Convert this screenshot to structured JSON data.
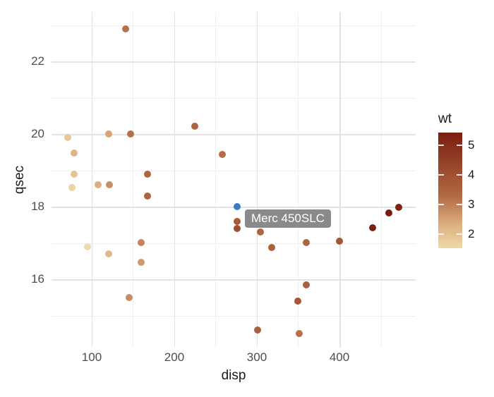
{
  "figure": {
    "background": "#ffffff"
  },
  "tooltip": {
    "text": "Merc 450SLC",
    "bg": "#8a8a8a",
    "text_color": "#ffffff"
  },
  "chart_data": {
    "type": "scatter",
    "title": "",
    "xlabel": "disp",
    "ylabel": "qsec",
    "xlim": [
      51.3,
      492.3
    ],
    "ylim": [
      14.12,
      23.36
    ],
    "x_ticks": [
      100,
      200,
      300,
      400
    ],
    "y_ticks": [
      16,
      18,
      20,
      22
    ],
    "x_minor_ticks": [
      150,
      250,
      350,
      450
    ],
    "y_minor_ticks": [
      15,
      17,
      19,
      21,
      23
    ],
    "grid": true,
    "legend": {
      "title": "wt",
      "position": "right",
      "min": 1.513,
      "max": 5.424,
      "ticks": [
        5,
        4,
        3,
        2
      ]
    },
    "color_scale": {
      "stops": [
        [
          0.0,
          "#F0D9A6"
        ],
        [
          0.2,
          "#DDB083"
        ],
        [
          0.45,
          "#B26A42"
        ],
        [
          0.7,
          "#99482C"
        ],
        [
          1.0,
          "#7A1D10"
        ]
      ]
    },
    "highlight": {
      "index": 13,
      "label": "Merc 450SLC",
      "color": "#3C7BC5"
    },
    "series_note": "points are [disp, qsec, wt]; point color encodes wt",
    "points": [
      [
        160.0,
        16.46,
        2.62
      ],
      [
        160.0,
        17.02,
        2.875
      ],
      [
        108.0,
        18.61,
        2.32
      ],
      [
        258.0,
        19.44,
        3.215
      ],
      [
        360.0,
        17.02,
        3.44
      ],
      [
        225.0,
        20.22,
        3.46
      ],
      [
        360.0,
        15.84,
        3.57
      ],
      [
        146.7,
        20.0,
        3.19
      ],
      [
        140.8,
        22.9,
        3.15
      ],
      [
        167.6,
        18.3,
        3.44
      ],
      [
        167.6,
        18.9,
        3.44
      ],
      [
        275.8,
        17.4,
        4.07
      ],
      [
        275.8,
        17.6,
        3.73
      ],
      [
        275.8,
        18.0,
        3.78
      ],
      [
        472.0,
        17.98,
        5.25
      ],
      [
        460.0,
        17.82,
        5.424
      ],
      [
        440.0,
        17.42,
        5.345
      ],
      [
        78.7,
        19.47,
        2.2
      ],
      [
        75.7,
        18.52,
        1.615
      ],
      [
        71.1,
        19.9,
        1.835
      ],
      [
        120.1,
        20.01,
        2.465
      ],
      [
        318.0,
        16.87,
        3.52
      ],
      [
        304.0,
        17.3,
        3.435
      ],
      [
        350.0,
        15.41,
        3.84
      ],
      [
        400.0,
        17.05,
        3.845
      ],
      [
        79.0,
        18.9,
        1.935
      ],
      [
        120.3,
        16.7,
        2.14
      ],
      [
        95.1,
        16.9,
        1.513
      ],
      [
        351.0,
        14.5,
        3.17
      ],
      [
        145.0,
        15.5,
        2.77
      ],
      [
        301.0,
        14.6,
        3.57
      ],
      [
        121.0,
        18.6,
        2.78
      ]
    ]
  }
}
